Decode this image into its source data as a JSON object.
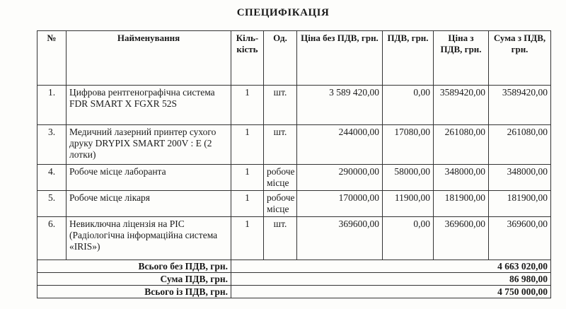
{
  "title": "СПЕЦИФІКАЦІЯ",
  "headers": [
    "№",
    "Найменування",
    "Кіль-кість",
    "Од.",
    "Ціна без ПДВ, грн.",
    "ПДВ, грн.",
    "Ціна з ПДВ, грн.",
    "Сума з ПДВ, грн."
  ],
  "rows": [
    {
      "no": "1.",
      "name": "Цифрова рентгенографічна система FDR SMART X FGXR 52S",
      "qty": "1",
      "unit": "шт.",
      "price": "3 589 420,00",
      "vat": "0,00",
      "price_vat": "3589420,00",
      "sum": "3589420,00"
    },
    {
      "no": "3.",
      "name": "Медичний лазерний принтер сухого друку DRYPIX SMART 200V : E (2 лотки)",
      "qty": "1",
      "unit": "шт.",
      "price": "244000,00",
      "vat": "17080,00",
      "price_vat": "261080,00",
      "sum": "261080,00"
    },
    {
      "no": "4.",
      "name": "Робоче місце лаборанта",
      "qty": "1",
      "unit": "робоче місце",
      "price": "290000,00",
      "vat": "58000,00",
      "price_vat": "348000,00",
      "sum": "348000,00"
    },
    {
      "no": "5.",
      "name": "Робоче місце лікаря",
      "qty": "1",
      "unit": "робоче місце",
      "price": "170000,00",
      "vat": "11900,00",
      "price_vat": "181900,00",
      "sum": "181900,00"
    },
    {
      "no": "6.",
      "name": "Невиключна ліцензія на РІС (Радіологічна інформаційна система «IRIS»)",
      "qty": "1",
      "unit": "шт.",
      "price": "369600,00",
      "vat": "0,00",
      "price_vat": "369600,00",
      "sum": "369600,00"
    }
  ],
  "totals": [
    {
      "label": "Всього без ПДВ, грн.",
      "value": "4 663 020,00"
    },
    {
      "label": "Сума ПДВ, грн.",
      "value": "86 980,00"
    },
    {
      "label": "Всього із ПДВ, грн.",
      "value": "4 750 000,00"
    }
  ]
}
